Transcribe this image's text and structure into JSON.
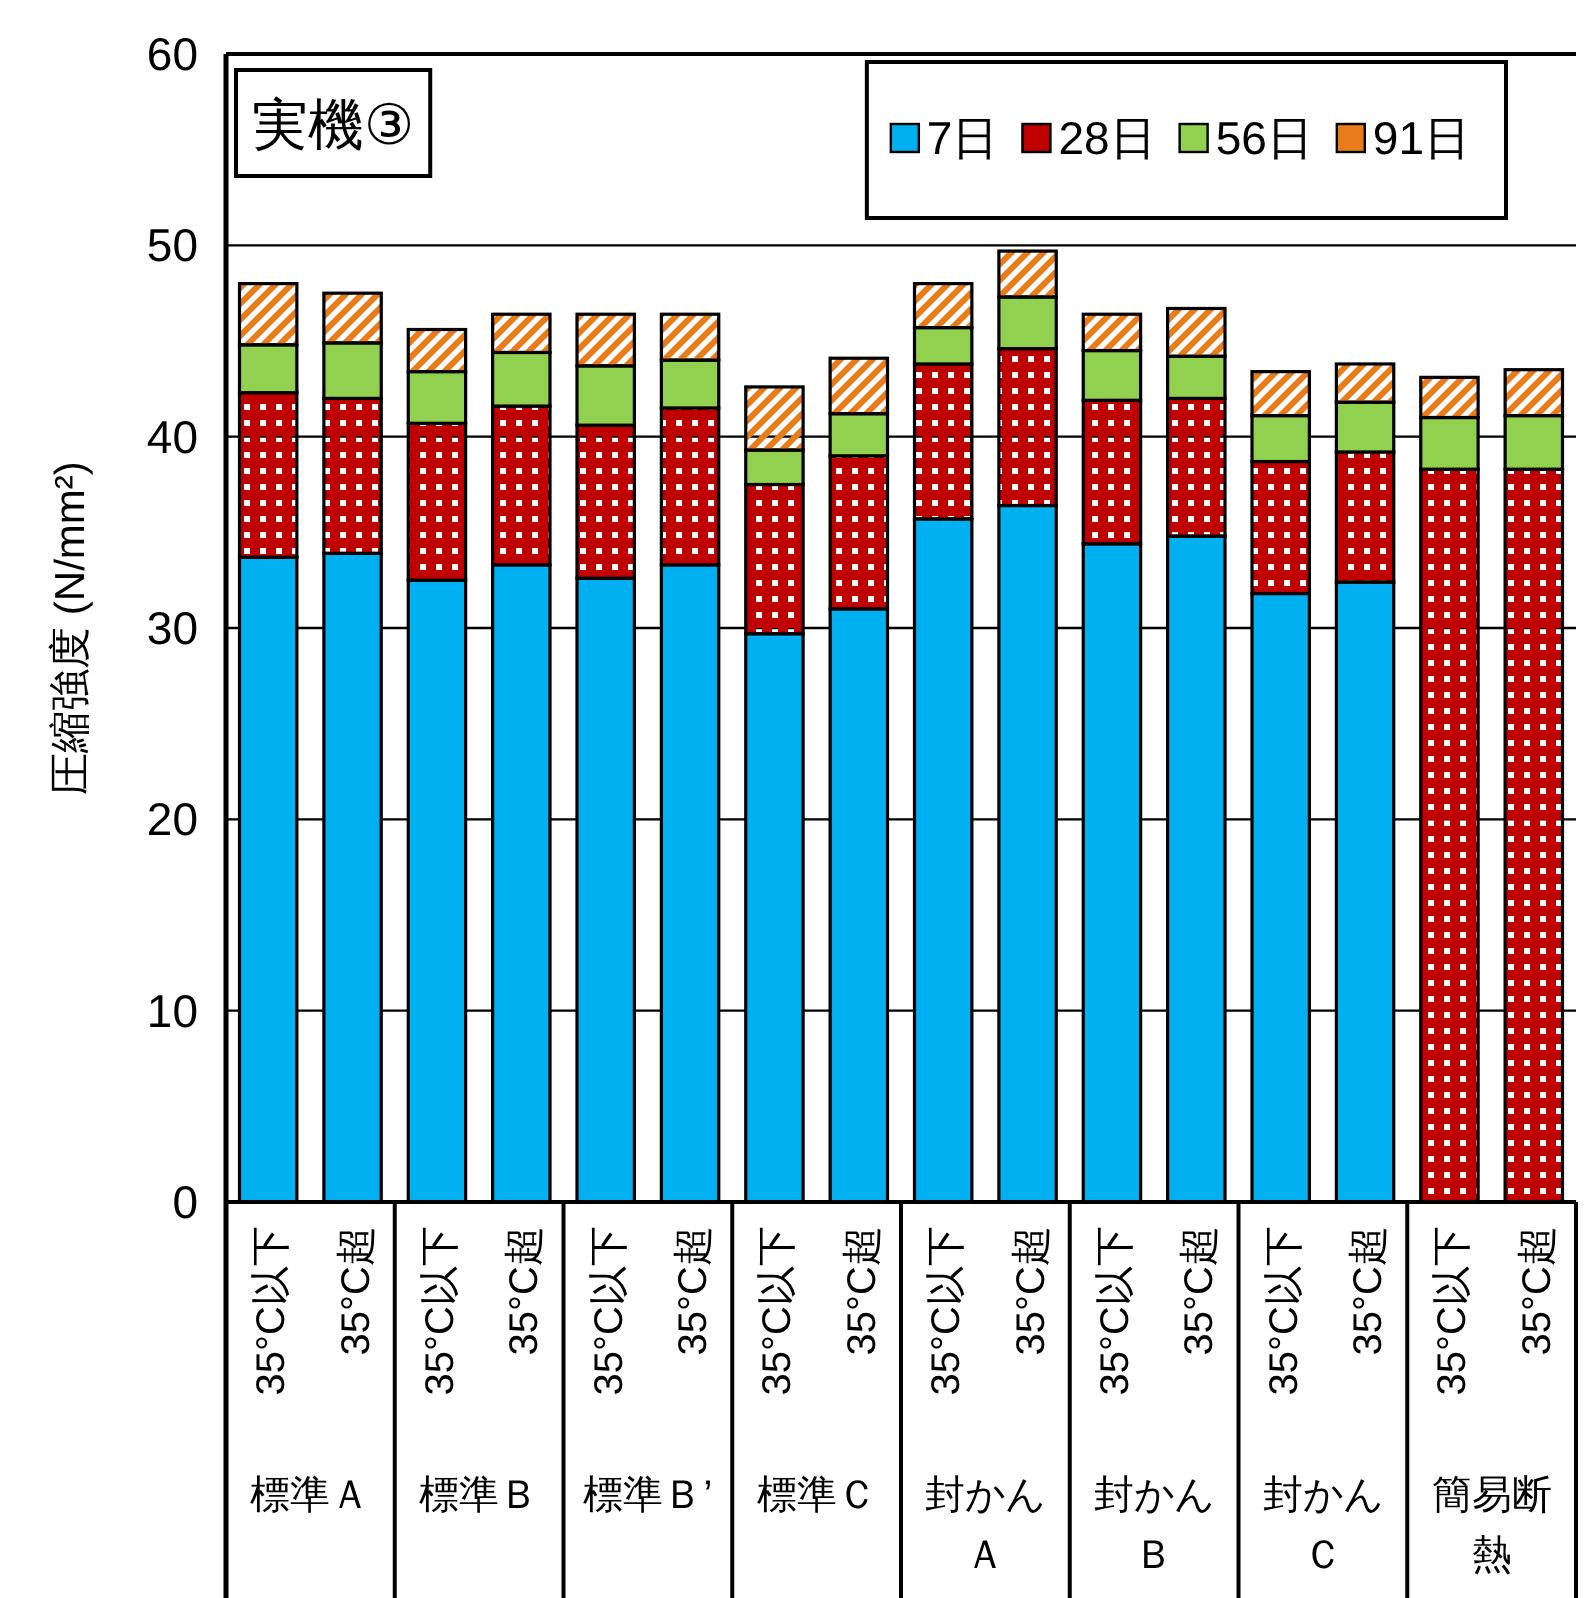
{
  "chart_data": {
    "type": "bar",
    "stacked": true,
    "title": "実機③",
    "ylabel": "圧縮強度 (N/mm²)",
    "categories": [
      "35°C以下",
      "35°C超",
      "35°C以下",
      "35°C超",
      "35°C以下",
      "35°C超",
      "35°C以下",
      "35°C超",
      "35°C以下",
      "35°C超",
      "35°C以下",
      "35°C超",
      "35°C以下",
      "35°C超",
      "35°C以下",
      "35°C超"
    ],
    "annotations": [
      "標準Ａ",
      "標準Ｂ",
      "標準Ｂ’",
      "標準Ｃ",
      "封かんＡ",
      "封かんＢ",
      "封かんＣ",
      "簡易断熱"
    ],
    "series": [
      {
        "name": "7日",
        "color": "#00b0f0",
        "values": [
          33.7,
          33.9,
          32.5,
          33.3,
          32.6,
          33.3,
          29.7,
          31.0,
          35.7,
          36.4,
          34.4,
          34.8,
          31.8,
          32.4,
          null,
          null
        ]
      },
      {
        "name": "28日",
        "color": "#c00000",
        "values": [
          8.6,
          8.1,
          8.2,
          8.3,
          8.0,
          8.2,
          7.8,
          8.0,
          8.1,
          8.2,
          7.5,
          7.2,
          6.9,
          6.8,
          38.3,
          38.3
        ]
      },
      {
        "name": "56日",
        "color": "#92d050",
        "values": [
          2.5,
          2.9,
          2.7,
          2.8,
          3.1,
          2.5,
          1.8,
          2.2,
          1.9,
          2.7,
          2.6,
          2.2,
          2.4,
          2.6,
          2.7,
          2.8
        ]
      },
      {
        "name": "91日",
        "color": "#e97c18",
        "values": [
          3.2,
          2.6,
          2.2,
          2.0,
          2.7,
          2.4,
          3.3,
          2.9,
          2.3,
          2.4,
          1.9,
          2.5,
          2.3,
          2.0,
          2.1,
          2.4
        ]
      }
    ],
    "ylim": [
      0,
      60
    ],
    "yticks": [
      0,
      10,
      20,
      30,
      40,
      50,
      60
    ],
    "grid": "y",
    "legend": "top right"
  }
}
